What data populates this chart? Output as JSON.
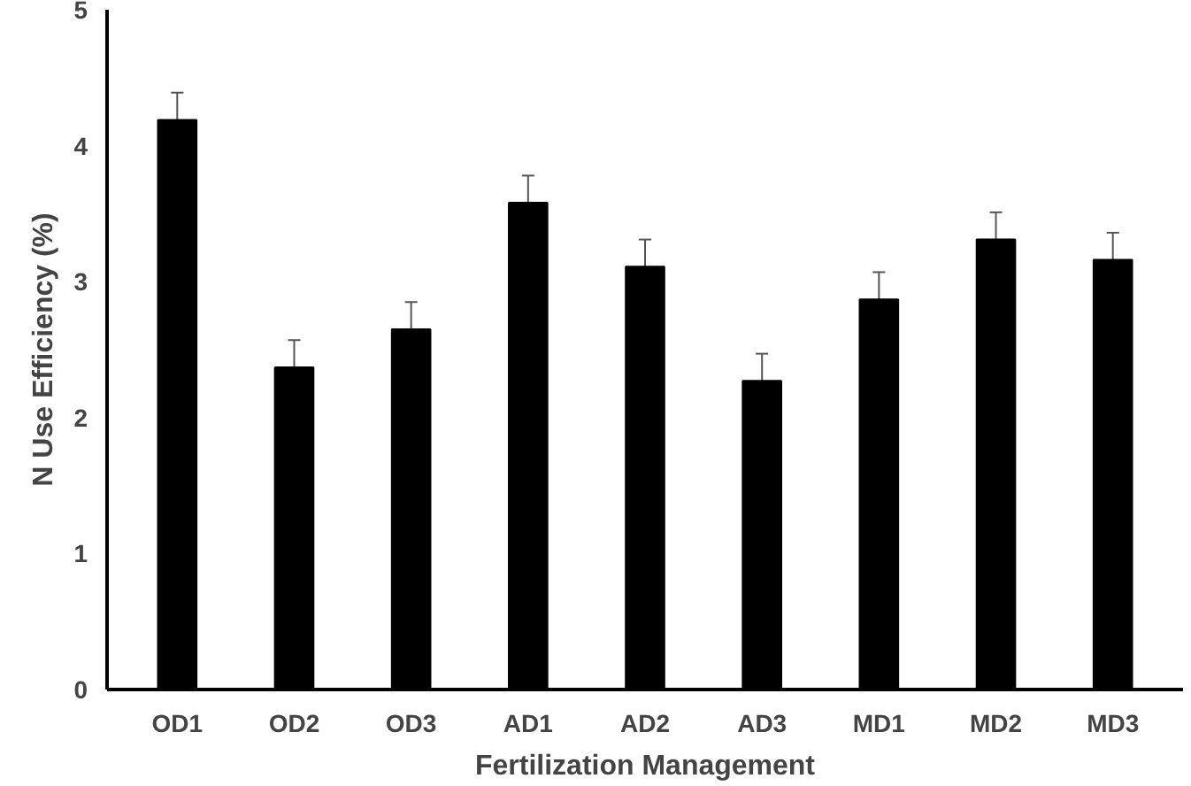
{
  "chart_data": {
    "type": "bar",
    "xlabel": "Fertilization Management",
    "ylabel": "N Use Efficiency (%)",
    "categories": [
      "OD1",
      "OD2",
      "OD3",
      "AD1",
      "AD2",
      "AD3",
      "MD1",
      "MD2",
      "MD3"
    ],
    "values": [
      4.19,
      2.37,
      2.65,
      3.58,
      3.11,
      2.27,
      2.87,
      3.31,
      3.16
    ],
    "errors": [
      0.2,
      0.2,
      0.2,
      0.2,
      0.2,
      0.2,
      0.2,
      0.2,
      0.2
    ],
    "color": "#000000",
    "ylim": [
      0,
      5
    ],
    "yticks": [
      0,
      1,
      2,
      3,
      4,
      5
    ],
    "grid": false
  }
}
